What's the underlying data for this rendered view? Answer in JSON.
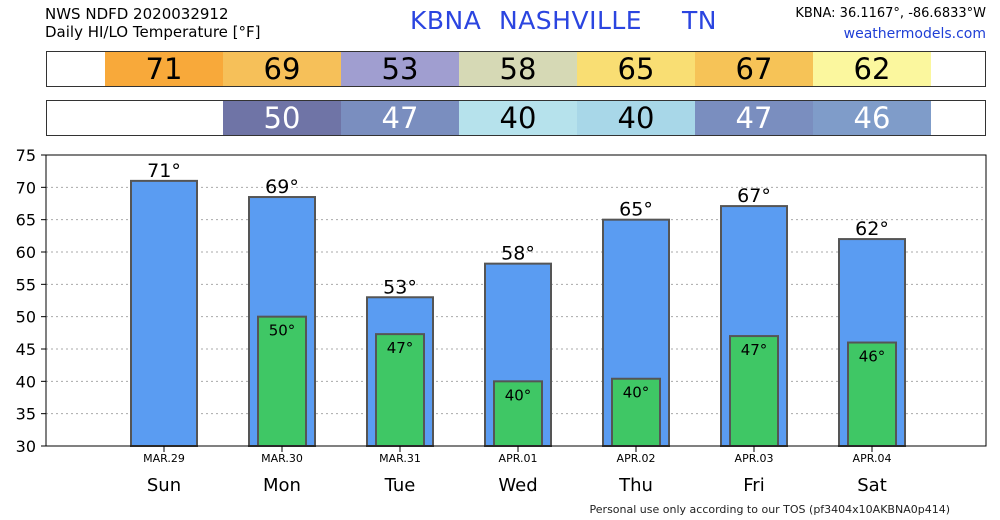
{
  "header": {
    "line1": "NWS NDFD 2020032912",
    "line2": "Daily HI/LO Temperature [°F]",
    "station_id": "KBNA",
    "city": "NASHVILLE",
    "state": "TN",
    "coords": "KBNA: 36.1167°, -86.6833°W",
    "site": "weathermodels.com"
  },
  "footer": "Personal use only according to our TOS (pf3404x10AKBNA0p414)",
  "hi_strip": [
    {
      "text": "71",
      "bg": "#f8a93a",
      "fg": "#000000"
    },
    {
      "text": "69",
      "bg": "#f6c059",
      "fg": "#000000"
    },
    {
      "text": "53",
      "bg": "#a09ed0",
      "fg": "#000000"
    },
    {
      "text": "58",
      "bg": "#d6d9b5",
      "fg": "#000000"
    },
    {
      "text": "65",
      "bg": "#f9de73",
      "fg": "#000000"
    },
    {
      "text": "67",
      "bg": "#f6c357",
      "fg": "#000000"
    },
    {
      "text": "62",
      "bg": "#fbf79e",
      "fg": "#000000"
    }
  ],
  "lo_strip": [
    {
      "text": "",
      "bg": "#ffffff",
      "fg": "#000000"
    },
    {
      "text": "50",
      "bg": "#6f74a6",
      "fg": "#ffffff"
    },
    {
      "text": "47",
      "bg": "#7a8ebf",
      "fg": "#ffffff"
    },
    {
      "text": "40",
      "bg": "#b6e2ec",
      "fg": "#000000"
    },
    {
      "text": "40",
      "bg": "#a8d7e8",
      "fg": "#000000"
    },
    {
      "text": "47",
      "bg": "#7a8ebf",
      "fg": "#ffffff"
    },
    {
      "text": "46",
      "bg": "#7f9cc9",
      "fg": "#ffffff"
    }
  ],
  "colors": {
    "hi_bar": "#5a9cf2",
    "lo_bar": "#3fc765",
    "bar_border": "#555555",
    "grid": "#aaaaaa"
  },
  "chart_data": {
    "type": "bar",
    "categories": [
      "Sun",
      "Mon",
      "Tue",
      "Wed",
      "Thu",
      "Fri",
      "Sat"
    ],
    "dates": [
      "MAR.29",
      "MAR.30",
      "MAR.31",
      "APR.01",
      "APR.02",
      "APR.03",
      "APR.04"
    ],
    "series": [
      {
        "values": [
          71,
          68.5,
          53,
          58.2,
          65,
          67.1,
          62
        ],
        "labels": [
          "71°",
          "69°",
          "53°",
          "58°",
          "65°",
          "67°",
          "62°"
        ]
      },
      {
        "values": [
          null,
          50,
          47.3,
          40,
          40.4,
          47,
          46
        ],
        "labels": [
          "",
          "50°",
          "47°",
          "40°",
          "40°",
          "47°",
          "46°"
        ]
      }
    ],
    "ylim": [
      30,
      75
    ],
    "yticks": [
      30,
      35,
      40,
      45,
      50,
      55,
      60,
      65,
      70,
      75
    ],
    "grid": true
  }
}
